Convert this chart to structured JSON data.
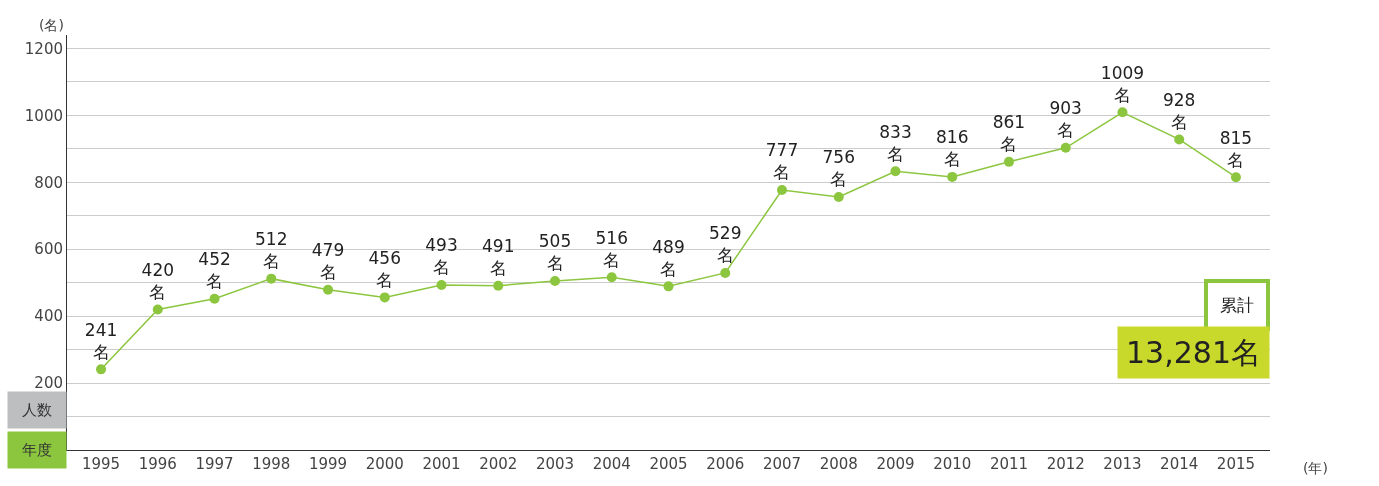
{
  "chart_data": {
    "type": "line",
    "ylabel": "(名)",
    "xlabel": "(年)",
    "categories": [
      "1995",
      "1996",
      "1997",
      "1998",
      "1999",
      "2000",
      "2001",
      "2002",
      "2003",
      "2004",
      "2005",
      "2006",
      "2007",
      "2008",
      "2009",
      "2010",
      "2011",
      "2012",
      "2013",
      "2014",
      "2015"
    ],
    "series": [
      {
        "color": "#8cc63f",
        "values": [
          241,
          420,
          452,
          512,
          479,
          456,
          493,
          491,
          505,
          516,
          489,
          529,
          777,
          756,
          833,
          816,
          861,
          903,
          1009,
          928,
          815
        ],
        "value_labels": [
          "241\n名",
          "420\n名",
          "452\n名",
          "512\n名",
          "479\n名",
          "456\n名",
          "493\n名",
          "491\n名",
          "505\n名",
          "516\n名",
          "489\n名",
          "529\n名",
          "777\n名",
          "756\n名",
          "833\n名",
          "816\n名",
          "861\n名",
          "903\n名",
          "1009\n名",
          "928\n名",
          "815\n名"
        ]
      }
    ],
    "ylim": [
      0,
      1240
    ],
    "yticks": [
      {
        "value": 100,
        "label": null
      },
      200,
      {
        "value": 300,
        "label": null
      },
      400,
      {
        "value": 500,
        "label": null
      },
      600,
      {
        "value": 700,
        "label": null
      },
      800,
      {
        "value": 900,
        "label": null
      },
      1000,
      {
        "value": 1100,
        "label": null
      },
      1200
    ],
    "grid": "y",
    "marker": "circle",
    "line_style": "solid",
    "annotations": [
      "人数",
      "年度",
      "累計",
      "13,281名"
    ]
  }
}
